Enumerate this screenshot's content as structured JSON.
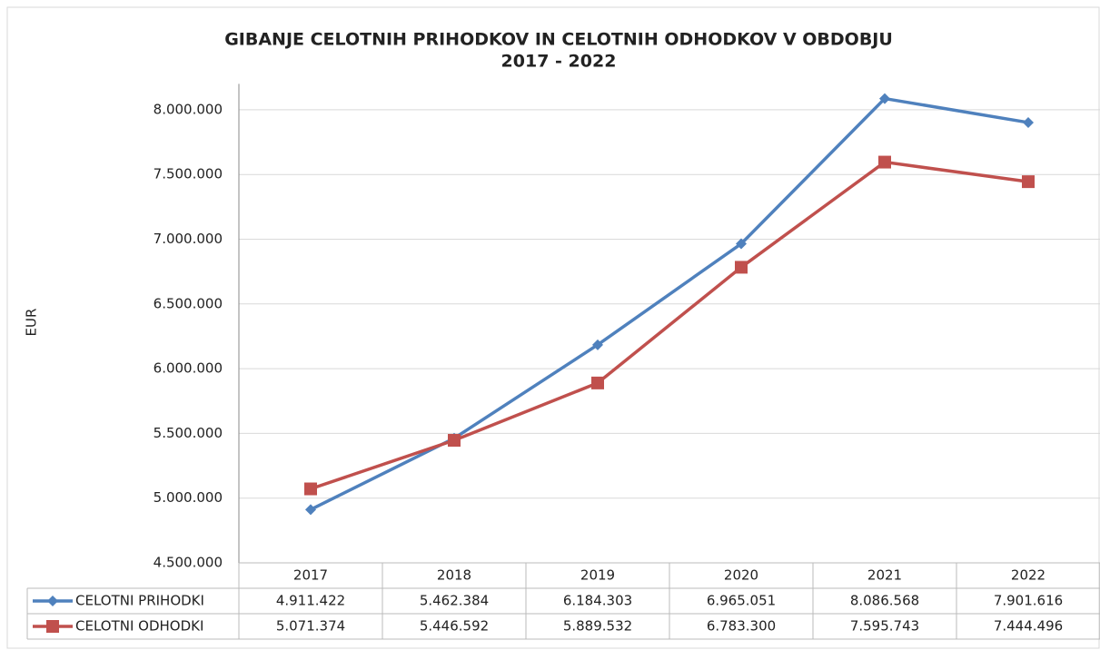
{
  "chart_data": {
    "type": "line",
    "title": [
      "GIBANJE CELOTNIH PRIHODKOV IN CELOTNIH ODHODKOV V OBDOBJU",
      "2017 - 2022"
    ],
    "y_label": "EUR",
    "categories": [
      "2017",
      "2018",
      "2019",
      "2020",
      "2021",
      "2022"
    ],
    "series": [
      {
        "name": "CELOTNI PRIHODKI",
        "color": "#4f81bd",
        "marker": "diamond",
        "values": [
          4911422,
          5462384,
          6184303,
          6965051,
          8086568,
          7901616
        ],
        "value_labels": [
          "4.911.422",
          "5.462.384",
          "6.184.303",
          "6.965.051",
          "8.086.568",
          "7.901.616"
        ]
      },
      {
        "name": "CELOTNI ODHODKI",
        "color": "#c0504d",
        "marker": "square",
        "values": [
          5071374,
          5446592,
          5889532,
          6783300,
          7595743,
          7444496
        ],
        "value_labels": [
          "5.071.374",
          "5.446.592",
          "5.889.532",
          "6.783.300",
          "7.595.743",
          "7.444.496"
        ]
      }
    ],
    "ylim": [
      4500000,
      8200000
    ],
    "yticks": [
      {
        "value": 4500000,
        "label": "4.500.000"
      },
      {
        "value": 5000000,
        "label": "5.000.000"
      },
      {
        "value": 5500000,
        "label": "5.500.000"
      },
      {
        "value": 6000000,
        "label": "6.000.000"
      },
      {
        "value": 6500000,
        "label": "6.500.000"
      },
      {
        "value": 7000000,
        "label": "7.000.000"
      },
      {
        "value": 7500000,
        "label": "7.500.000"
      },
      {
        "value": 8000000,
        "label": "8.000.000"
      }
    ],
    "grid": true,
    "data_table": true
  }
}
